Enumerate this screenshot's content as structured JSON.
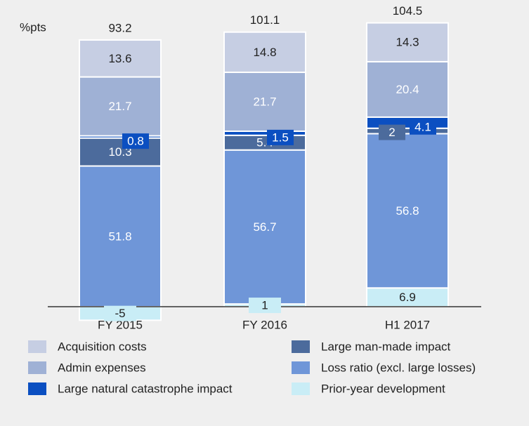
{
  "chart_data": {
    "type": "stacked_bar",
    "unit_label": "%pts",
    "categories": [
      "FY 2015",
      "FY 2016",
      "H1 2017"
    ],
    "totals": [
      93.2,
      101.1,
      104.5
    ],
    "series": [
      {
        "name": "Prior-year development",
        "color": "#c9edf6",
        "values": [
          -5.0,
          1.0,
          6.9
        ]
      },
      {
        "name": "Loss ratio (excl. large losses)",
        "color": "#6f96d8",
        "values": [
          51.8,
          56.7,
          56.8
        ]
      },
      {
        "name": "Large man-made impact",
        "color": "#4c6b9c",
        "values": [
          10.3,
          5.4,
          2.0
        ]
      },
      {
        "name": "Large natural catastrophe impact",
        "color": "#0b4fc1",
        "values": [
          0.8,
          1.5,
          4.1
        ]
      },
      {
        "name": "Admin expenses",
        "color": "#9fb1d5",
        "values": [
          21.7,
          21.7,
          20.4
        ]
      },
      {
        "name": "Acquisition costs",
        "color": "#c6cee3",
        "values": [
          13.6,
          14.8,
          14.3
        ]
      }
    ]
  }
}
